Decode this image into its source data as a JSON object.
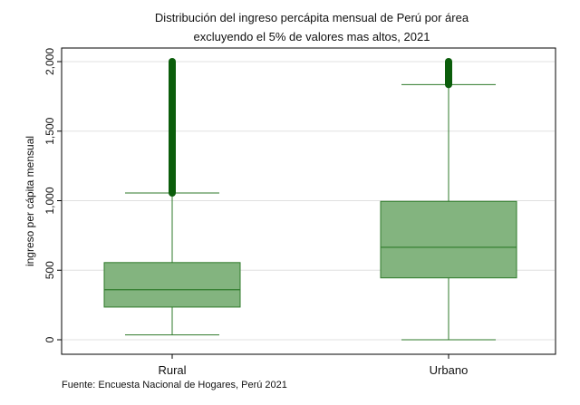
{
  "chart_data": {
    "type": "boxplot",
    "title": [
      "Distribución del ingreso percápita mensual de Perú por área",
      "excluyendo el 5% de valores mas altos, 2021"
    ],
    "xlabel": "",
    "ylabel": "ingreso per cápita mensual",
    "ylim": [
      0,
      2000
    ],
    "yticks": [
      0,
      500,
      1000,
      1500,
      2000
    ],
    "ytick_labels": [
      "0",
      "500",
      "1,000",
      "1,500",
      "2,000"
    ],
    "grid": true,
    "categories": [
      "Rural",
      "Urbano"
    ],
    "boxes": [
      {
        "category": "Rural",
        "whisker_low": 35,
        "q1": 235,
        "median": 360,
        "q3": 555,
        "whisker_high": 1055,
        "outliers_from": 1055,
        "outliers_to": 2000
      },
      {
        "category": "Urbano",
        "whisker_low": 0,
        "q1": 445,
        "median": 665,
        "q3": 995,
        "whisker_high": 1835,
        "outliers_from": 1835,
        "outliers_to": 2000
      }
    ],
    "colors": {
      "box_fill": "#83b47f",
      "box_edge": "#2e7a2a",
      "outlier": "#0b5d0b",
      "frame": "#000000",
      "grid": "#e0e0e0",
      "plot_bg": "#ffffff"
    },
    "source": "Fuente: Encuesta Nacional de Hogares, Perú 2021"
  }
}
